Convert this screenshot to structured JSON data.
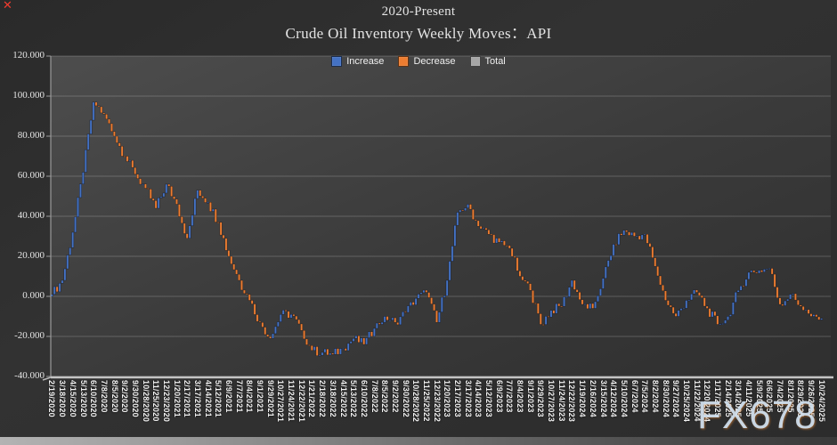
{
  "window": {
    "close_glyph": "✕"
  },
  "title": {
    "line1": "2020-Present",
    "line2": "Crude Oil Inventory Weekly Moves：API"
  },
  "legend": [
    {
      "label": "Increase",
      "color": "#4472c4"
    },
    {
      "label": "Decrease",
      "color": "#ed7d31"
    },
    {
      "label": "Total",
      "color": "#a6a6a6"
    }
  ],
  "watermark": "FX678",
  "chart_data": {
    "type": "waterfall",
    "title": "2020-Present Crude Oil Inventory Weekly Moves: API",
    "xlabel": "",
    "ylabel": "",
    "ylim": [
      -40,
      120
    ],
    "ytick_step": 20,
    "ytick_values": [
      120,
      100,
      80,
      60,
      40,
      20,
      0,
      -20,
      -40
    ],
    "ytick_labels": [
      "120.000",
      "100.000",
      "80.000",
      "60.000",
      "40.000",
      "20.000",
      "0.000",
      "-20.000",
      "-40.000"
    ],
    "grid": true,
    "legend_position": "top-center",
    "bar_series_colors": {
      "increase": "#4472c4",
      "decrease": "#ed7d31",
      "total": "#a6a6a6"
    },
    "gridline_color": "rgba(255,255,255,0.2)",
    "weeks_per_tick": 4,
    "x_label_rotation_deg": 90,
    "x_tick_dates": [
      "2/19/2020",
      "3/18/2020",
      "4/15/2020",
      "5/13/2020",
      "6/10/2020",
      "7/8/2020",
      "8/5/2020",
      "9/2/2020",
      "9/30/2020",
      "10/28/2020",
      "11/25/2020",
      "12/23/2020",
      "1/20/2021",
      "2/17/2021",
      "3/17/2021",
      "4/14/2021",
      "5/12/2021",
      "6/9/2021",
      "7/7/2021",
      "8/4/2021",
      "9/1/2021",
      "9/29/2021",
      "10/27/2021",
      "11/24/2021",
      "12/22/2021",
      "1/21/2022",
      "2/18/2022",
      "3/18/2022",
      "4/15/2022",
      "5/13/2022",
      "6/10/2022",
      "7/8/2022",
      "8/5/2022",
      "9/2/2022",
      "9/30/2022",
      "10/28/2022",
      "11/25/2022",
      "12/23/2022",
      "1/20/2023",
      "2/17/2023",
      "3/17/2023",
      "4/14/2023",
      "5/12/2023",
      "6/9/2023",
      "7/7/2023",
      "8/4/2023",
      "9/1/2023",
      "9/29/2023",
      "10/27/2023",
      "11/24/2023",
      "12/22/2023",
      "1/19/2024",
      "2/16/2024",
      "3/15/2024",
      "4/12/2024",
      "5/10/2024",
      "6/7/2024",
      "7/5/2024",
      "8/2/2024",
      "8/30/2024",
      "9/27/2024",
      "10/25/2024",
      "11/22/2024",
      "12/20/2024",
      "1/17/2025",
      "2/14/2025",
      "3/14/2025",
      "4/11/2025",
      "5/9/2025",
      "6/6/2025",
      "7/4/2025",
      "8/1/2025",
      "8/29/2025",
      "9/26/2025",
      "10/24/2025"
    ],
    "cumulative_total_at_ticks": [
      1,
      8,
      32,
      62,
      97,
      91,
      80,
      70,
      61,
      54,
      44,
      56,
      46,
      29,
      53,
      47,
      37,
      20,
      8,
      -2,
      -13,
      -21,
      -9,
      -9,
      -17,
      -27,
      -28,
      -29,
      -26,
      -21,
      -24,
      -16,
      -10,
      -13,
      -8,
      -1,
      2,
      -13,
      8,
      42,
      46,
      35,
      31,
      27,
      24,
      10,
      3,
      -14,
      -7,
      -5,
      8,
      -4,
      -6,
      9,
      26,
      33,
      30,
      31,
      15,
      -2,
      -10,
      -2,
      2,
      -6,
      -14,
      -10,
      3,
      12,
      13,
      14,
      -4,
      1,
      -5,
      -10,
      -11
    ],
    "notable_points": {
      "start": "≈0 on 2/19/2020",
      "peak": "≈100 in mid-June 2020",
      "low": "≈-31 in March 2022",
      "high_2023": "≈47 in March 2023",
      "high_2024": "≈34 in May 2024",
      "end": "≈-11 on 10/24/2025"
    }
  }
}
